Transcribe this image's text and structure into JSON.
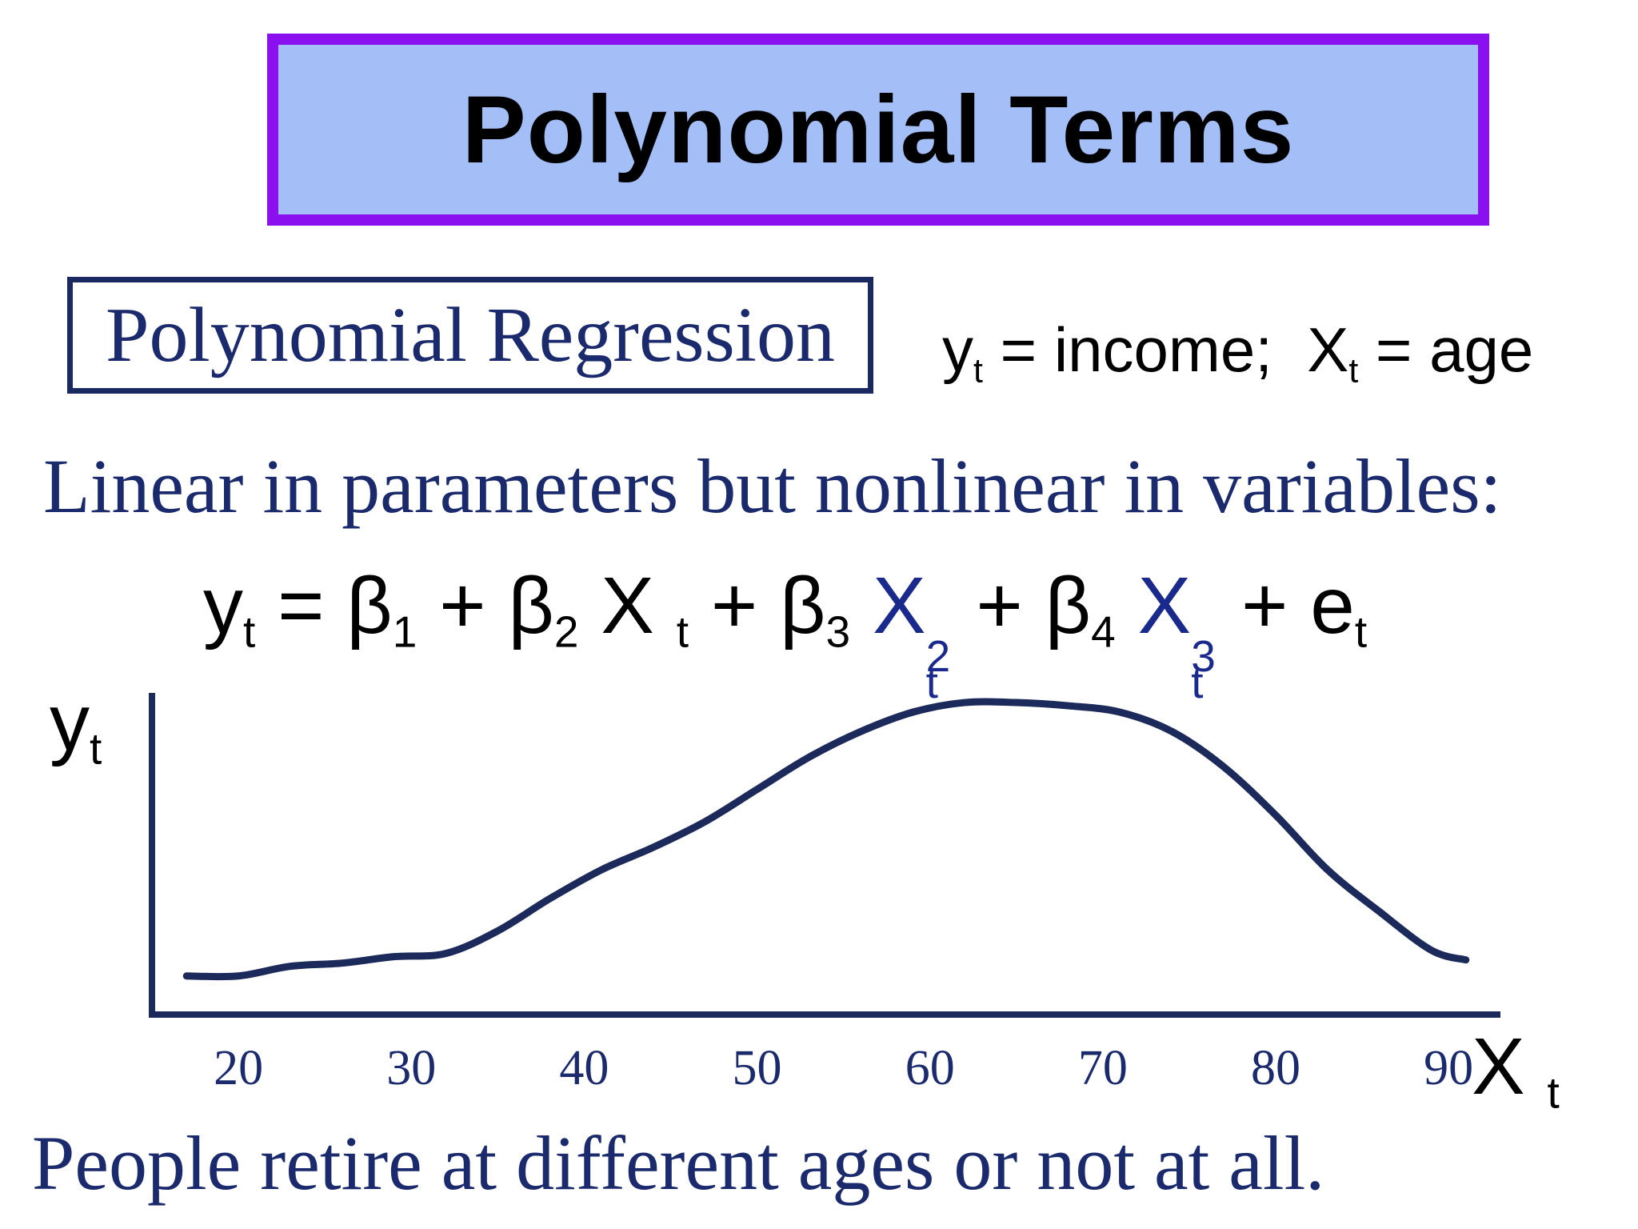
{
  "slide": {
    "title": "Polynomial Terms",
    "subtitle": "Polynomial Regression",
    "definitions": {
      "y": "y",
      "y_sub": "t",
      "y_def": " = income;  ",
      "x": "X",
      "x_sub": "t",
      "x_def": " = age"
    },
    "statement": "Linear in parameters but nonlinear in variables:",
    "equation": {
      "lhs": "y",
      "lhs_sub": "t",
      "eq": " = ",
      "b": "β",
      "one": "1",
      "two": "2",
      "three": "3",
      "four": "4",
      "plus": " + ",
      "x": "X",
      "t": "t",
      "sq": "2",
      "cube": "3",
      "e": "e"
    },
    "footer": "People retire at different ages or not at all."
  },
  "chart_data": {
    "type": "line",
    "ylabel": "y",
    "ylabel_sub": "t",
    "xlabel": "X",
    "xlabel_sub": "t",
    "xticks": [
      "20",
      "30",
      "40",
      "50",
      "60",
      "70",
      "80",
      "90"
    ],
    "xlim": [
      15,
      93
    ],
    "ylim": [
      0,
      100
    ],
    "color": "#1b2a5a",
    "series": [
      {
        "x": [
          17,
          20,
          23,
          26,
          29,
          32,
          35,
          38,
          41,
          44,
          47,
          50,
          53,
          56,
          59,
          62,
          65,
          68,
          71,
          74,
          77,
          80,
          83,
          86,
          89,
          91
        ],
        "y": [
          12,
          12,
          15,
          16,
          18,
          19,
          26,
          36,
          45,
          52,
          60,
          70,
          80,
          88,
          94,
          97,
          97,
          96,
          94,
          88,
          77,
          62,
          45,
          32,
          20,
          17
        ]
      }
    ]
  }
}
